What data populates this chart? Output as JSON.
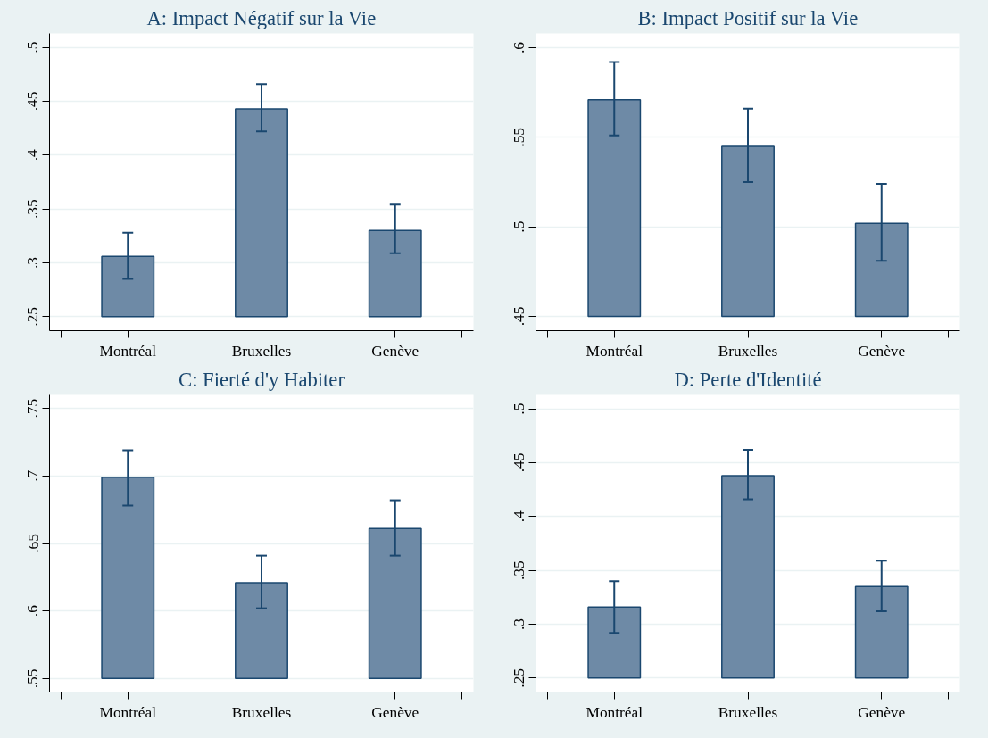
{
  "chart_data": [
    {
      "type": "bar",
      "title": "A: Impact Négatif sur la Vie",
      "categories": [
        "Montréal",
        "Bruxelles",
        "Genève"
      ],
      "base": [
        0.25,
        0.25,
        0.25
      ],
      "values": [
        0.056,
        0.193,
        0.08
      ],
      "errors": [
        [
          0.285,
          0.328
        ],
        [
          0.422,
          0.466
        ],
        [
          0.309,
          0.354
        ]
      ],
      "color": "#6e8aa6",
      "ylim": [
        0.237,
        0.513
      ],
      "yticks": [
        {
          "value": 0.25,
          "label": ".25"
        },
        {
          "value": 0.3,
          "label": ".3"
        },
        {
          "value": 0.35,
          "label": ".35"
        },
        {
          "value": 0.4,
          "label": ".4"
        },
        {
          "value": 0.45,
          "label": ".45"
        },
        {
          "value": 0.5,
          "label": ".5"
        }
      ],
      "grid": "y"
    },
    {
      "type": "bar",
      "title": "B: Impact Positif sur la Vie",
      "categories": [
        "Montréal",
        "Bruxelles",
        "Genève"
      ],
      "base": [
        0.45,
        0.45,
        0.45
      ],
      "values": [
        0.121,
        0.095,
        0.052
      ],
      "errors": [
        [
          0.551,
          0.592
        ],
        [
          0.525,
          0.566
        ],
        [
          0.481,
          0.524
        ]
      ],
      "color": "#6e8aa6",
      "ylim": [
        0.442,
        0.608
      ],
      "yticks": [
        {
          "value": 0.45,
          "label": ".45"
        },
        {
          "value": 0.5,
          "label": ".5"
        },
        {
          "value": 0.55,
          "label": ".55"
        },
        {
          "value": 0.6,
          "label": ".6"
        }
      ],
      "grid": "y"
    },
    {
      "type": "bar",
      "title": "C: Fierté d'y Habiter",
      "categories": [
        "Montréal",
        "Bruxelles",
        "Genève"
      ],
      "base": [
        0.55,
        0.55,
        0.55
      ],
      "values": [
        0.149,
        0.071,
        0.111
      ],
      "errors": [
        [
          0.678,
          0.719
        ],
        [
          0.602,
          0.641
        ],
        [
          0.641,
          0.682
        ]
      ],
      "color": "#6e8aa6",
      "ylim": [
        0.54,
        0.76
      ],
      "yticks": [
        {
          "value": 0.55,
          "label": ".55"
        },
        {
          "value": 0.6,
          "label": ".6"
        },
        {
          "value": 0.65,
          "label": ".65"
        },
        {
          "value": 0.7,
          "label": ".7"
        },
        {
          "value": 0.75,
          "label": ".75"
        }
      ],
      "grid": "y"
    },
    {
      "type": "bar",
      "title": "D: Perte d'Identité",
      "categories": [
        "Montréal",
        "Bruxelles",
        "Genève"
      ],
      "base": [
        0.25,
        0.25,
        0.25
      ],
      "values": [
        0.066,
        0.188,
        0.085
      ],
      "errors": [
        [
          0.292,
          0.34
        ],
        [
          0.416,
          0.462
        ],
        [
          0.312,
          0.359
        ]
      ],
      "color": "#6e8aa6",
      "ylim": [
        0.237,
        0.513
      ],
      "yticks": [
        {
          "value": 0.25,
          "label": ".25"
        },
        {
          "value": 0.3,
          "label": ".3"
        },
        {
          "value": 0.35,
          "label": ".35"
        },
        {
          "value": 0.4,
          "label": ".4"
        },
        {
          "value": 0.45,
          "label": ".45"
        },
        {
          "value": 0.5,
          "label": ".5"
        }
      ],
      "grid": "y"
    }
  ]
}
